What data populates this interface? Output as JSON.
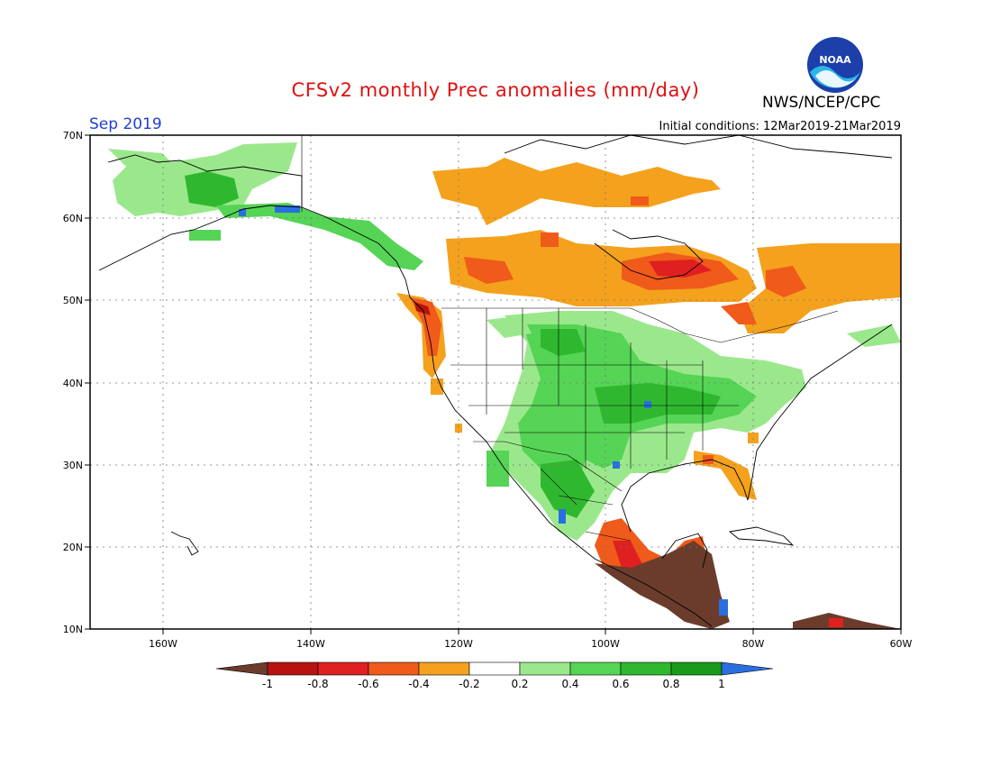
{
  "header": {
    "title": "CFSv2 monthly Prec anomalies (mm/day)",
    "agency": "NWS/NCEP/CPC",
    "logo_text": "NOAA",
    "month": "Sep 2019",
    "initial_conditions": "Initial conditions: 12Mar2019-21Mar2019"
  },
  "map": {
    "lat_labels": [
      "70N",
      "60N",
      "50N",
      "40N",
      "30N",
      "20N",
      "10N"
    ],
    "lon_labels": [
      "160W",
      "140W",
      "120W",
      "100W",
      "80W",
      "60W"
    ]
  },
  "colorbar": {
    "labels": [
      "-1",
      "-0.8",
      "-0.6",
      "-0.4",
      "-0.2",
      "0.2",
      "0.4",
      "0.6",
      "0.8",
      "1"
    ],
    "colors": [
      "#6b3c2c",
      "#b8140f",
      "#e02020",
      "#f05a1a",
      "#f4a11d",
      "#ffffff",
      "#9be88c",
      "#55d455",
      "#2fb82f",
      "#1a9a1a",
      "#2a6fe0"
    ]
  },
  "colors": {
    "title": "#e01010",
    "month": "#1f3fd0",
    "frame": "#000000"
  }
}
